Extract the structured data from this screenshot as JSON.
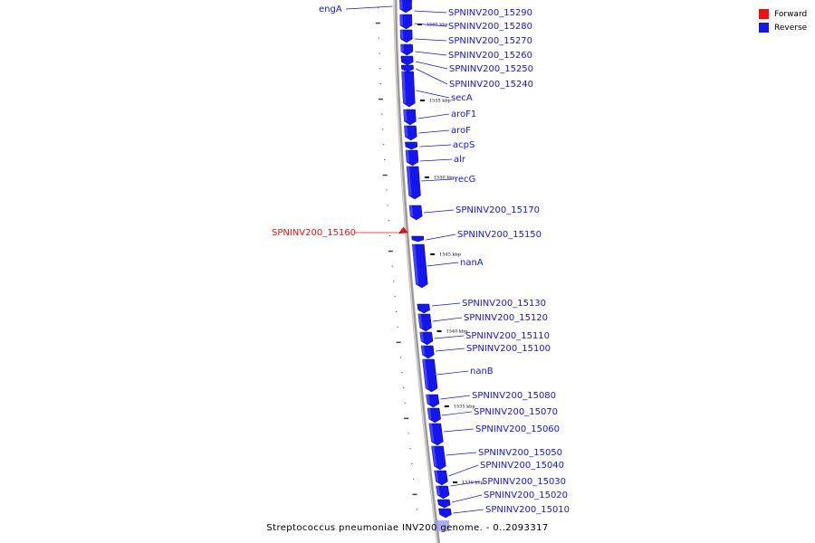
{
  "legend": [
    {
      "label": "Forward",
      "color": "#ee1111"
    },
    {
      "label": "Reverse",
      "color": "#1515ee"
    }
  ],
  "caption": "Streptococcus pneumoniae INV200 genome. - 0..2093317",
  "ticks": [
    "1560 kbp",
    "1555 kbp",
    "1550 kbp",
    "1545 kbp",
    "1540 kbp",
    "1535 kbp",
    "1530 kbp"
  ],
  "features": [
    {
      "name": "engA",
      "strand": "reverse"
    },
    {
      "name": "SPNINV200_15290",
      "strand": "reverse"
    },
    {
      "name": "SPNINV200_15280",
      "strand": "reverse"
    },
    {
      "name": "SPNINV200_15270",
      "strand": "reverse"
    },
    {
      "name": "SPNINV200_15260",
      "strand": "reverse"
    },
    {
      "name": "SPNINV200_15250",
      "strand": "reverse"
    },
    {
      "name": "SPNINV200_15240",
      "strand": "reverse"
    },
    {
      "name": "secA",
      "strand": "reverse"
    },
    {
      "name": "aroF1",
      "strand": "reverse"
    },
    {
      "name": "aroF",
      "strand": "reverse"
    },
    {
      "name": "acpS",
      "strand": "reverse"
    },
    {
      "name": "alr",
      "strand": "reverse"
    },
    {
      "name": "recG",
      "strand": "reverse"
    },
    {
      "name": "SPNINV200_15170",
      "strand": "reverse"
    },
    {
      "name": "SPNINV200_15160",
      "strand": "forward"
    },
    {
      "name": "SPNINV200_15150",
      "strand": "reverse"
    },
    {
      "name": "nanA",
      "strand": "reverse"
    },
    {
      "name": "SPNINV200_15130",
      "strand": "reverse"
    },
    {
      "name": "SPNINV200_15120",
      "strand": "reverse"
    },
    {
      "name": "SPNINV200_15110",
      "strand": "reverse"
    },
    {
      "name": "SPNINV200_15100",
      "strand": "reverse"
    },
    {
      "name": "nanB",
      "strand": "reverse"
    },
    {
      "name": "SPNINV200_15080",
      "strand": "reverse"
    },
    {
      "name": "SPNINV200_15070",
      "strand": "reverse"
    },
    {
      "name": "SPNINV200_15060",
      "strand": "reverse"
    },
    {
      "name": "SPNINV200_15050",
      "strand": "reverse"
    },
    {
      "name": "SPNINV200_15040",
      "strand": "reverse"
    },
    {
      "name": "SPNINV200_15030",
      "strand": "reverse"
    },
    {
      "name": "SPNINV200_15020",
      "strand": "reverse"
    },
    {
      "name": "SPNINV200_15010",
      "strand": "reverse"
    }
  ]
}
